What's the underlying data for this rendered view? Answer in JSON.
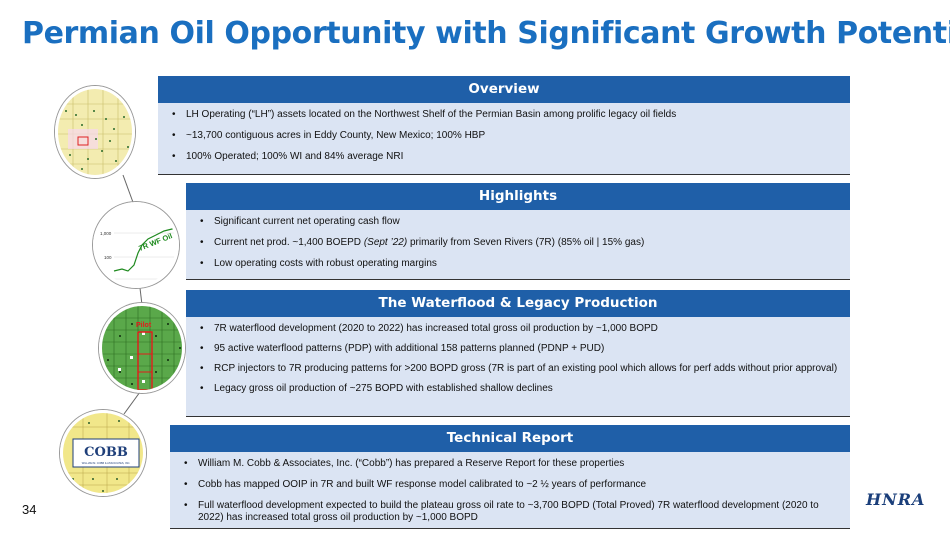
{
  "title": "Permian Oil Opportunity with Significant Growth Potential",
  "page_number": "34",
  "logo_text": "HNRA",
  "colors": {
    "title": "#1a6fc0",
    "header": "#1f5fa8",
    "panel_bg": "#dbe4f3"
  },
  "overview": {
    "heading": "Overview",
    "bullets": [
      "LH Operating (“LH”) assets located on the Northwest Shelf of the Permian Basin among prolific legacy oil fields",
      "~13,700 contiguous acres in Eddy County, New Mexico; 100% HBP",
      "100% Operated; 100% WI and 84% average NRI"
    ]
  },
  "highlights": {
    "heading": "Highlights",
    "bullet1": "Significant current net operating cash flow",
    "bullet2_pre": "Current net prod. ~1,400 BOEPD ",
    "bullet2_italic": "(Sept ’22)",
    "bullet2_post": " primarily from Seven Rivers (7R) (85% oil | 15% gas)",
    "bullet3": "Low operating costs with robust operating margins"
  },
  "waterflood": {
    "heading": "The Waterflood & Legacy Production",
    "bullets": [
      "7R waterflood development (2020 to 2022) has increased total gross oil production by ~1,000 BOPD",
      " 95 active waterflood patterns (PDP) with additional 158 patterns planned (PDNP + PUD)",
      " RCP injectors to 7R producing patterns for >200 BOPD gross (7R is part of an existing pool which allows for perf adds without prior approval)",
      " Legacy gross oil production of ~275 BOPD with established shallow declines"
    ]
  },
  "technical": {
    "heading": "Technical Report",
    "bullets": [
      "William M. Cobb & Associates, Inc. (“Cobb”) has prepared a Reserve Report for these properties",
      "Cobb has mapped OOIP in 7R and built WF response model calibrated to ~2 ½ years of performance",
      "Full waterflood development expected to build the plateau gross oil rate to ~3,700 BOPD (Total Proved) 7R waterflood development (2020 to 2022) has increased total gross oil production by ~1,000 BOPD"
    ]
  },
  "thumbs": {
    "chart_label": "7R WF Oil",
    "chart_tick_top": "1,000",
    "chart_tick_bottom": "100",
    "grid_label": "Pilot",
    "cobb_logo": "COBB",
    "cobb_sub": "WILLIAM M. COBB & ASSOCIATES, INC."
  }
}
